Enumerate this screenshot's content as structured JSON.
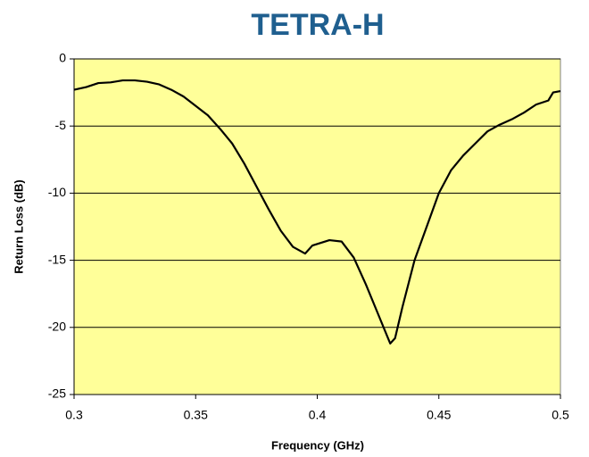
{
  "chart_data": {
    "type": "line",
    "title": "TETRA-H",
    "xlabel": "Frequency (GHz)",
    "ylabel": "Return Loss (dB)",
    "x": [
      0.3,
      0.305,
      0.31,
      0.315,
      0.32,
      0.325,
      0.33,
      0.335,
      0.34,
      0.345,
      0.35,
      0.355,
      0.36,
      0.365,
      0.37,
      0.375,
      0.38,
      0.385,
      0.39,
      0.395,
      0.398,
      0.405,
      0.41,
      0.415,
      0.42,
      0.425,
      0.43,
      0.432,
      0.435,
      0.44,
      0.445,
      0.45,
      0.455,
      0.46,
      0.465,
      0.47,
      0.475,
      0.48,
      0.485,
      0.49,
      0.495,
      0.497,
      0.5
    ],
    "series": [
      {
        "name": "Return Loss",
        "color": "#000000",
        "values": [
          -2.3,
          -2.1,
          -1.8,
          -1.75,
          -1.6,
          -1.6,
          -1.7,
          -1.9,
          -2.3,
          -2.8,
          -3.5,
          -4.2,
          -5.2,
          -6.3,
          -7.8,
          -9.5,
          -11.2,
          -12.8,
          -14.0,
          -14.5,
          -13.9,
          -13.5,
          -13.6,
          -14.8,
          -16.8,
          -19.0,
          -21.2,
          -20.8,
          -18.5,
          -15.0,
          -12.5,
          -10.0,
          -8.3,
          -7.2,
          -6.3,
          -5.4,
          -4.9,
          -4.5,
          -4.0,
          -3.4,
          -3.1,
          -2.5,
          -2.4
        ]
      }
    ],
    "xlim": [
      0.3,
      0.5
    ],
    "xticks": [
      0.3,
      0.35,
      0.4,
      0.45,
      0.5
    ],
    "ylim": [
      -25,
      0
    ],
    "yticks": [
      0,
      -5,
      -10,
      -15,
      -20,
      -25
    ],
    "grid": true,
    "plot_background": "#ffff99"
  }
}
